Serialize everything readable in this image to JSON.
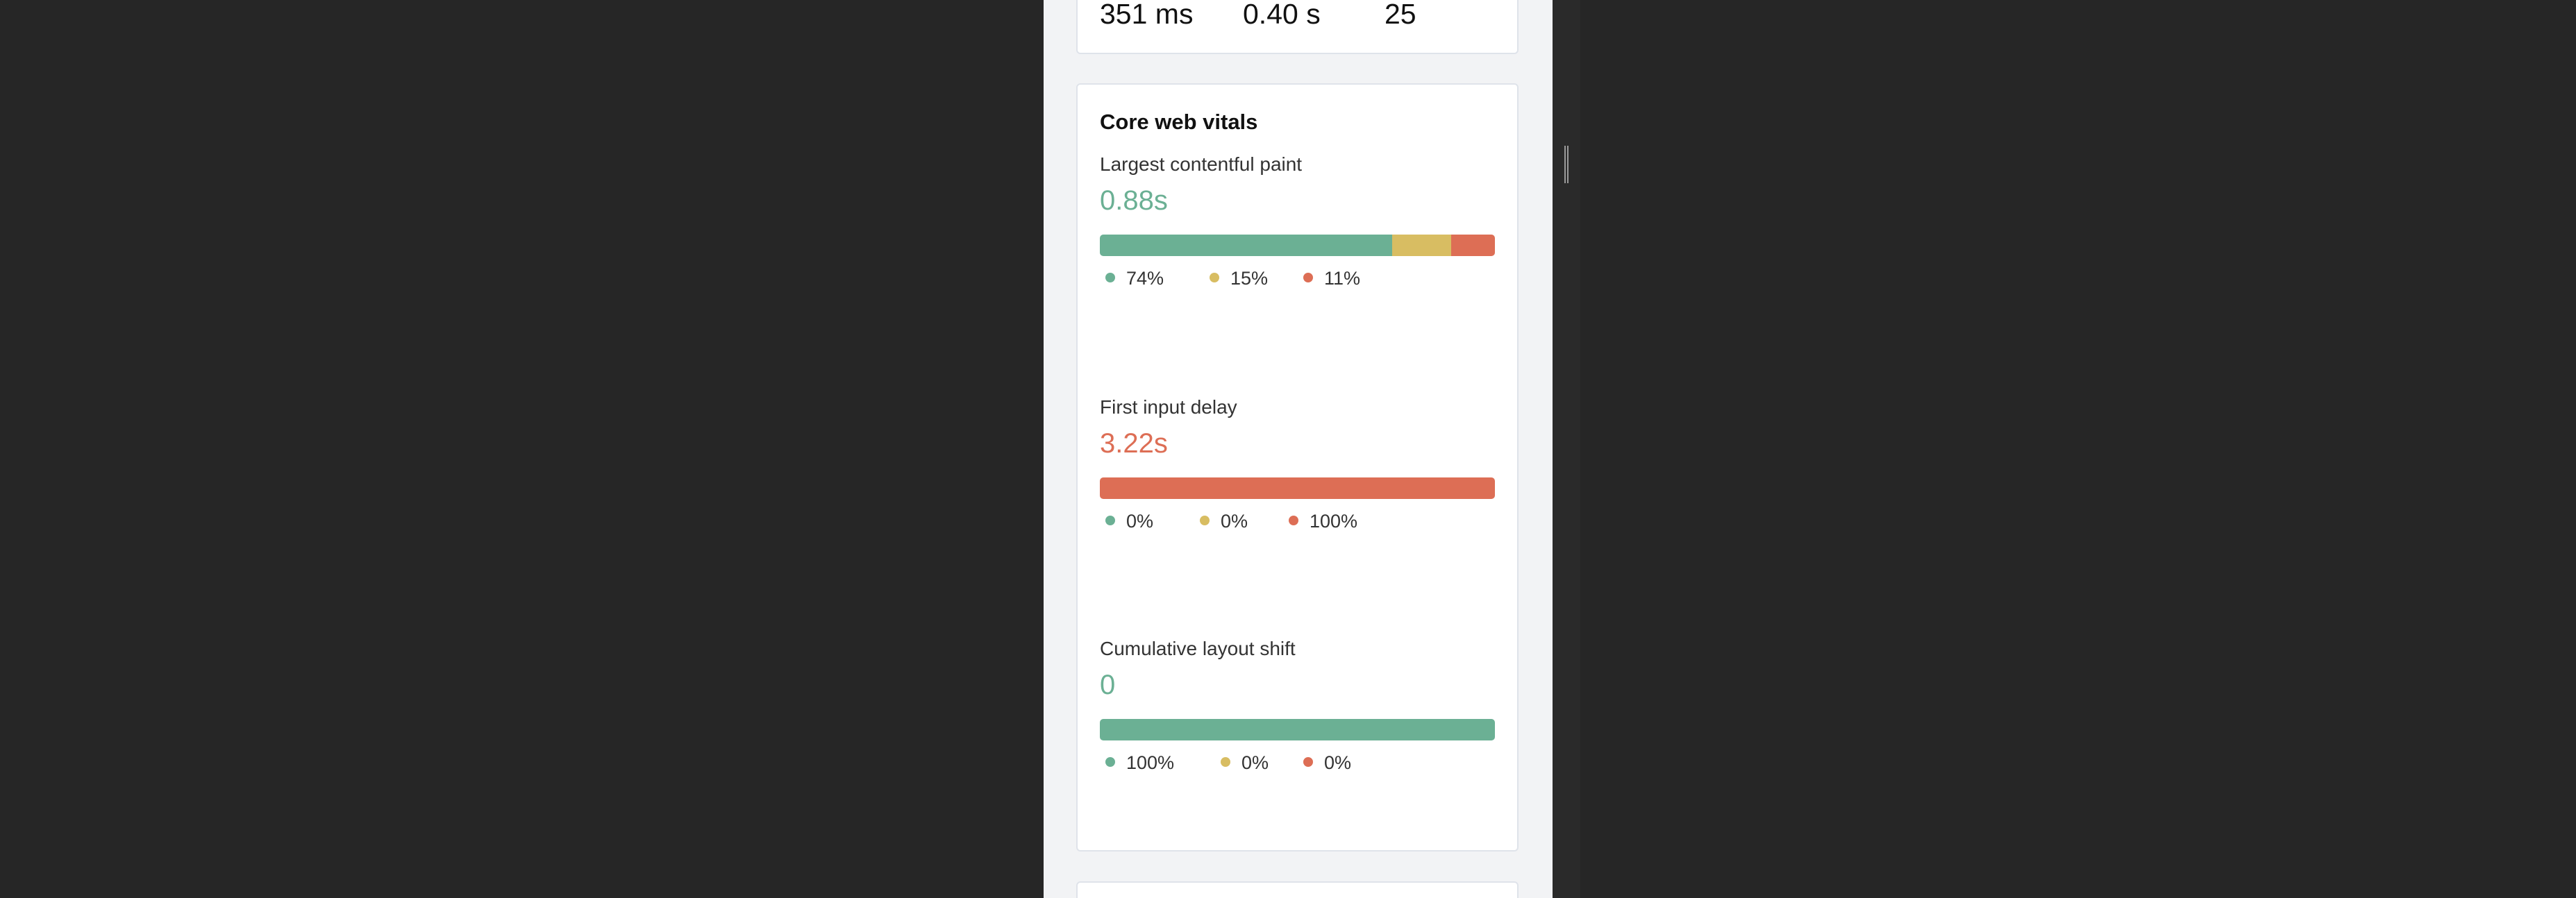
{
  "colors": {
    "good": "#6bb094",
    "needs_improvement": "#d8bd62",
    "poor": "#dd6e55"
  },
  "summary_metrics": [
    "351 ms",
    "0.40 s",
    "25"
  ],
  "vitals_card": {
    "title": "Core web vitals",
    "items": [
      {
        "label": "Largest contentful paint",
        "value": "0.88s",
        "status": "good",
        "distribution": {
          "good": 74,
          "needs_improvement": 15,
          "poor": 11
        },
        "legend": [
          "74%",
          "15%",
          "11%"
        ]
      },
      {
        "label": "First input delay",
        "value": "3.22s",
        "status": "poor",
        "distribution": {
          "good": 0,
          "needs_improvement": 0,
          "poor": 100
        },
        "legend": [
          "0%",
          "0%",
          "100%"
        ]
      },
      {
        "label": "Cumulative layout shift",
        "value": "0",
        "status": "good",
        "distribution": {
          "good": 100,
          "needs_improvement": 0,
          "poor": 0
        },
        "legend": [
          "100%",
          "0%",
          "0%"
        ]
      }
    ]
  }
}
